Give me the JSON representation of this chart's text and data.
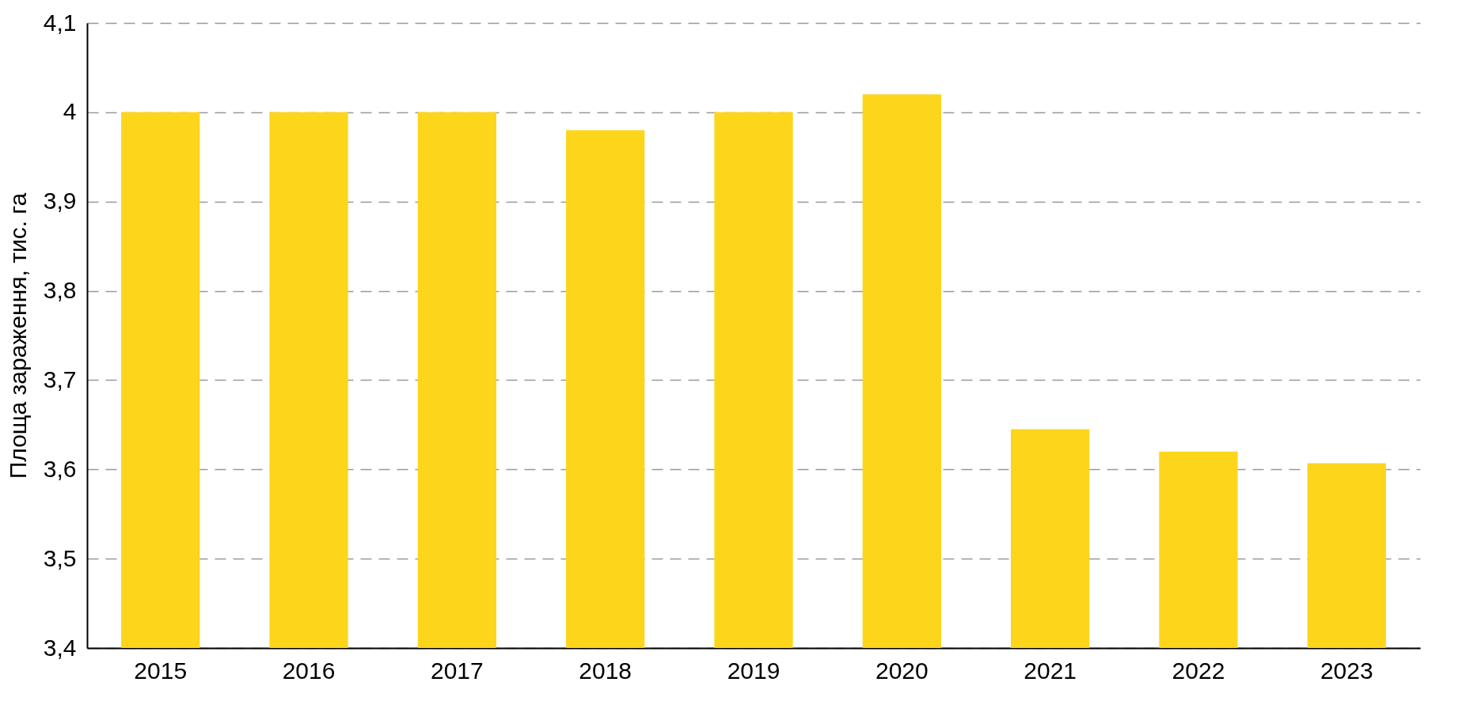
{
  "chart_data": {
    "type": "bar",
    "ylabel": "Площа зараження, тис. га",
    "categories": [
      "2015",
      "2016",
      "2017",
      "2018",
      "2019",
      "2020",
      "2021",
      "2022",
      "2023"
    ],
    "values": [
      4.0,
      4.0,
      4.0,
      3.98,
      4.0,
      4.02,
      3.645,
      3.62,
      3.607
    ],
    "color": "#fdd51b",
    "ylim": [
      3.4,
      4.1
    ],
    "yticks": [
      {
        "value": 3.4,
        "label": "3,4"
      },
      {
        "value": 3.5,
        "label": "3,5"
      },
      {
        "value": 3.6,
        "label": "3,6"
      },
      {
        "value": 3.7,
        "label": "3,7"
      },
      {
        "value": 3.8,
        "label": "3,8"
      },
      {
        "value": 3.9,
        "label": "3,9"
      },
      4,
      {
        "value": 4.1,
        "label": "4,1"
      }
    ],
    "grid": "y"
  }
}
